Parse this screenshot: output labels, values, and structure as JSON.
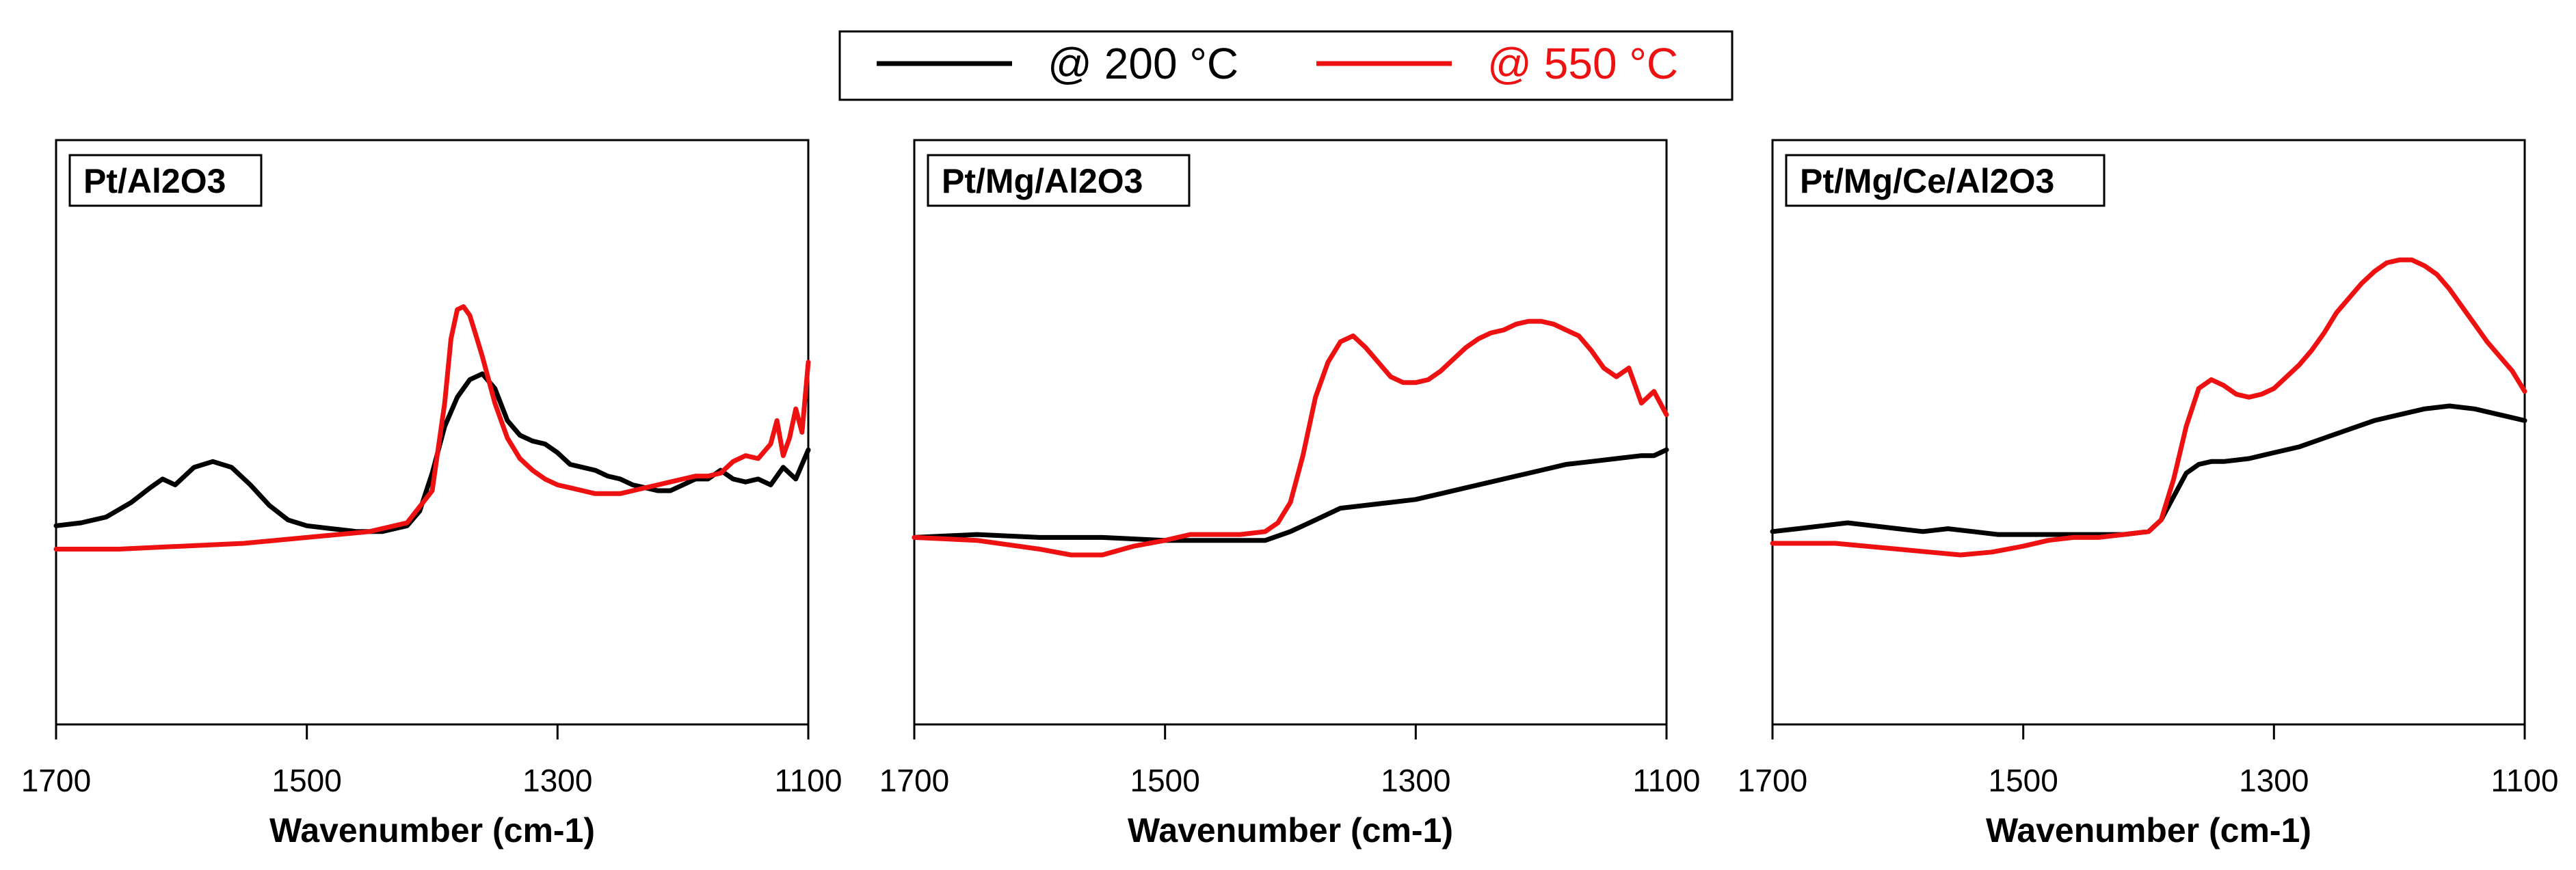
{
  "legend": [
    {
      "label": "@ 200 °C",
      "color": "#000000"
    },
    {
      "label": "@ 550 °C",
      "color": "#ee1111"
    }
  ],
  "chart_data": [
    {
      "type": "line",
      "title": "Pt/Al2O3",
      "xlabel": "Wavenumber (cm-1)",
      "ylabel": "",
      "xlim": [
        1700,
        1100
      ],
      "xticks": [
        "1700",
        "1500",
        "1300",
        "1100"
      ],
      "ylim": [
        0,
        1
      ],
      "series": [
        {
          "name": "@ 200 °C",
          "color": "#000000",
          "x": [
            1700,
            1680,
            1660,
            1640,
            1625,
            1615,
            1605,
            1590,
            1575,
            1560,
            1545,
            1530,
            1515,
            1500,
            1480,
            1460,
            1440,
            1420,
            1410,
            1400,
            1390,
            1380,
            1370,
            1360,
            1350,
            1340,
            1330,
            1320,
            1310,
            1300,
            1290,
            1280,
            1270,
            1260,
            1250,
            1240,
            1230,
            1220,
            1210,
            1200,
            1190,
            1180,
            1170,
            1160,
            1150,
            1140,
            1130,
            1120,
            1110,
            1100
          ],
          "y": [
            0.34,
            0.345,
            0.355,
            0.38,
            0.405,
            0.42,
            0.41,
            0.44,
            0.45,
            0.44,
            0.41,
            0.375,
            0.35,
            0.34,
            0.335,
            0.33,
            0.33,
            0.34,
            0.365,
            0.43,
            0.51,
            0.56,
            0.59,
            0.6,
            0.575,
            0.52,
            0.495,
            0.485,
            0.48,
            0.465,
            0.445,
            0.44,
            0.435,
            0.425,
            0.42,
            0.41,
            0.405,
            0.4,
            0.4,
            0.41,
            0.42,
            0.42,
            0.435,
            0.42,
            0.415,
            0.42,
            0.41,
            0.44,
            0.42,
            0.47
          ]
        },
        {
          "name": "@ 550 °C",
          "color": "#ee1111",
          "x": [
            1700,
            1650,
            1600,
            1550,
            1500,
            1450,
            1420,
            1400,
            1390,
            1385,
            1380,
            1375,
            1370,
            1365,
            1360,
            1350,
            1340,
            1330,
            1320,
            1310,
            1300,
            1290,
            1280,
            1270,
            1260,
            1250,
            1240,
            1230,
            1220,
            1210,
            1200,
            1190,
            1180,
            1170,
            1160,
            1150,
            1140,
            1130,
            1125,
            1120,
            1115,
            1110,
            1105,
            1100
          ],
          "y": [
            0.3,
            0.3,
            0.305,
            0.31,
            0.32,
            0.33,
            0.345,
            0.4,
            0.55,
            0.66,
            0.71,
            0.715,
            0.7,
            0.665,
            0.63,
            0.55,
            0.49,
            0.455,
            0.435,
            0.42,
            0.41,
            0.405,
            0.4,
            0.395,
            0.395,
            0.395,
            0.4,
            0.405,
            0.41,
            0.415,
            0.42,
            0.425,
            0.425,
            0.43,
            0.45,
            0.46,
            0.455,
            0.48,
            0.52,
            0.46,
            0.49,
            0.54,
            0.5,
            0.62
          ]
        }
      ]
    },
    {
      "type": "line",
      "title": "Pt/Mg/Al2O3",
      "xlabel": "Wavenumber (cm-1)",
      "ylabel": "",
      "xlim": [
        1700,
        1100
      ],
      "xticks": [
        "1700",
        "1500",
        "1300",
        "1100"
      ],
      "ylim": [
        0,
        1
      ],
      "series": [
        {
          "name": "@ 200 °C",
          "color": "#000000",
          "x": [
            1700,
            1650,
            1600,
            1550,
            1500,
            1460,
            1440,
            1420,
            1400,
            1380,
            1370,
            1360,
            1340,
            1320,
            1300,
            1280,
            1260,
            1240,
            1220,
            1200,
            1180,
            1160,
            1140,
            1120,
            1110,
            1100
          ],
          "y": [
            0.32,
            0.325,
            0.32,
            0.32,
            0.315,
            0.315,
            0.315,
            0.315,
            0.33,
            0.35,
            0.36,
            0.37,
            0.375,
            0.38,
            0.385,
            0.395,
            0.405,
            0.415,
            0.425,
            0.435,
            0.445,
            0.45,
            0.455,
            0.46,
            0.46,
            0.47
          ]
        },
        {
          "name": "@ 550 °C",
          "color": "#ee1111",
          "x": [
            1700,
            1650,
            1600,
            1575,
            1550,
            1525,
            1500,
            1480,
            1460,
            1440,
            1420,
            1410,
            1400,
            1390,
            1380,
            1370,
            1360,
            1350,
            1340,
            1330,
            1320,
            1310,
            1300,
            1290,
            1280,
            1270,
            1260,
            1250,
            1240,
            1230,
            1220,
            1210,
            1200,
            1190,
            1180,
            1170,
            1160,
            1150,
            1140,
            1130,
            1120,
            1110,
            1100
          ],
          "y": [
            0.32,
            0.315,
            0.3,
            0.29,
            0.29,
            0.305,
            0.315,
            0.325,
            0.325,
            0.325,
            0.33,
            0.345,
            0.38,
            0.46,
            0.56,
            0.62,
            0.655,
            0.665,
            0.645,
            0.62,
            0.595,
            0.585,
            0.585,
            0.59,
            0.605,
            0.625,
            0.645,
            0.66,
            0.67,
            0.675,
            0.685,
            0.69,
            0.69,
            0.685,
            0.675,
            0.665,
            0.64,
            0.61,
            0.595,
            0.61,
            0.55,
            0.57,
            0.53
          ]
        }
      ]
    },
    {
      "type": "line",
      "title": "Pt/Mg/Ce/Al2O3",
      "xlabel": "Wavenumber (cm-1)",
      "ylabel": "",
      "xlim": [
        1700,
        1100
      ],
      "xticks": [
        "1700",
        "1500",
        "1300",
        "1100"
      ],
      "ylim": [
        0,
        1
      ],
      "series": [
        {
          "name": "@ 200 °C",
          "color": "#000000",
          "x": [
            1700,
            1680,
            1660,
            1640,
            1620,
            1600,
            1580,
            1560,
            1540,
            1520,
            1500,
            1480,
            1460,
            1440,
            1420,
            1400,
            1390,
            1380,
            1370,
            1360,
            1350,
            1340,
            1320,
            1300,
            1280,
            1260,
            1240,
            1220,
            1200,
            1180,
            1160,
            1140,
            1120,
            1100
          ],
          "y": [
            0.33,
            0.335,
            0.34,
            0.345,
            0.34,
            0.335,
            0.33,
            0.335,
            0.33,
            0.325,
            0.325,
            0.325,
            0.325,
            0.325,
            0.325,
            0.33,
            0.35,
            0.39,
            0.43,
            0.445,
            0.45,
            0.45,
            0.455,
            0.465,
            0.475,
            0.49,
            0.505,
            0.52,
            0.53,
            0.54,
            0.545,
            0.54,
            0.53,
            0.52
          ]
        },
        {
          "name": "@ 550 °C",
          "color": "#ee1111",
          "x": [
            1700,
            1650,
            1600,
            1575,
            1550,
            1525,
            1500,
            1480,
            1460,
            1440,
            1420,
            1400,
            1390,
            1380,
            1370,
            1360,
            1350,
            1340,
            1330,
            1320,
            1310,
            1300,
            1290,
            1280,
            1270,
            1260,
            1250,
            1240,
            1230,
            1220,
            1210,
            1200,
            1190,
            1180,
            1170,
            1160,
            1150,
            1140,
            1130,
            1120,
            1110,
            1100
          ],
          "y": [
            0.31,
            0.31,
            0.3,
            0.295,
            0.29,
            0.295,
            0.305,
            0.315,
            0.32,
            0.32,
            0.325,
            0.33,
            0.35,
            0.42,
            0.51,
            0.575,
            0.59,
            0.58,
            0.565,
            0.56,
            0.565,
            0.575,
            0.595,
            0.615,
            0.64,
            0.67,
            0.705,
            0.73,
            0.755,
            0.775,
            0.79,
            0.795,
            0.795,
            0.785,
            0.77,
            0.745,
            0.715,
            0.685,
            0.655,
            0.63,
            0.605,
            0.57
          ]
        }
      ]
    }
  ]
}
